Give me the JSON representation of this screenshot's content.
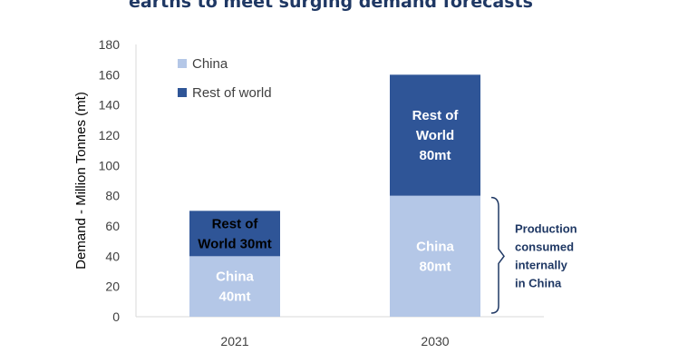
{
  "chart_data": {
    "type": "bar",
    "stacked": true,
    "title": "earths to meet surging demand forecasts",
    "ylabel": "Demand - Million Tonnes (mt)",
    "xlabel": "",
    "ylim": [
      0,
      180
    ],
    "yticks": [
      0,
      20,
      40,
      60,
      80,
      100,
      120,
      140,
      160,
      180
    ],
    "categories": [
      "2021",
      "2030"
    ],
    "series": [
      {
        "name": "China",
        "color": "#b4c7e7",
        "values": [
          40,
          80
        ],
        "labels": [
          [
            "China",
            "40mt"
          ],
          [
            "China",
            "80mt"
          ]
        ],
        "label_colors": [
          "#ffffff",
          "#ffffff"
        ]
      },
      {
        "name": "Rest of world",
        "color": "#2f5597",
        "values": [
          30,
          80
        ],
        "labels": [
          [
            "Rest of",
            "World 30mt"
          ],
          [
            "Rest of",
            "World",
            "80mt"
          ]
        ],
        "label_colors": [
          "#000000",
          "#ffffff"
        ]
      }
    ],
    "legend": "top-left",
    "annotation": {
      "category": "2030",
      "range": [
        0,
        80
      ],
      "lines": [
        "Production",
        "consumed",
        "internally",
        "in China"
      ]
    }
  }
}
